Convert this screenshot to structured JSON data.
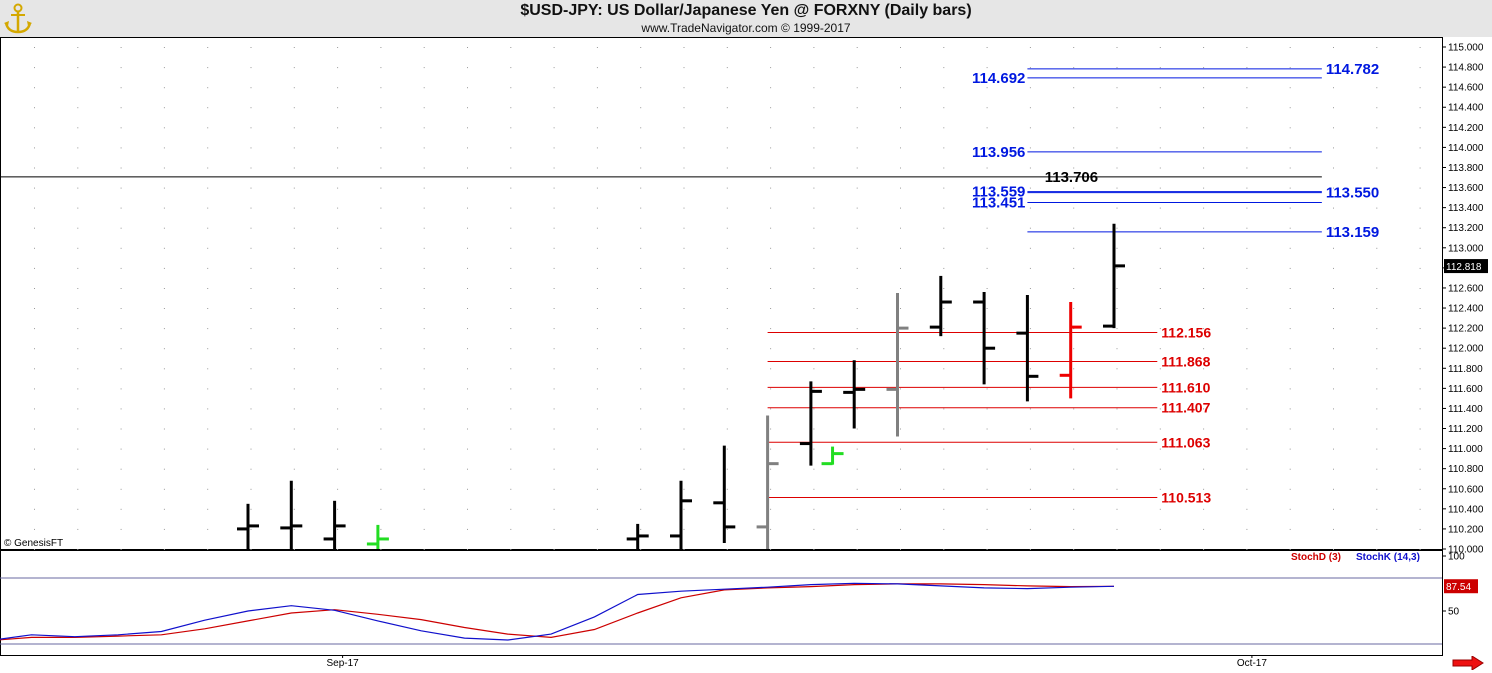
{
  "window": {
    "title": "$USD-JPY:  US Dollar/Japanese Yen @ FORXNY  (Daily bars)",
    "subtitle": "www.TradeNavigator.com © 1999-2017",
    "logo_icon": "anchor-logo-icon",
    "scroll_icon": "right-arrow-icon"
  },
  "colors": {
    "header_bg": "#e6e6e6",
    "bar_black": "#000000",
    "bar_gray": "#808080",
    "bar_green": "#22dd22",
    "bar_red": "#ee0000",
    "fib_blue": "#0018e0",
    "fib_red": "#dd0000",
    "stoch_d": "#cc0000",
    "stoch_k": "#1010cc",
    "last_price_bg": "#000000"
  },
  "chart_data": [
    {
      "type": "ohlc",
      "ylim": [
        110.0,
        115.0
      ],
      "y_ticks": [
        "115.000",
        "114.800",
        "114.600",
        "114.400",
        "114.200",
        "114.000",
        "113.800",
        "113.600",
        "113.400",
        "113.200",
        "113.000",
        "112.800",
        "112.600",
        "112.400",
        "112.200",
        "112.000",
        "111.800",
        "111.600",
        "111.400",
        "111.200",
        "111.000",
        "110.800",
        "110.600",
        "110.400",
        "110.200",
        "110.000"
      ],
      "x_labels": [
        {
          "label": "Sep-17",
          "bar": 2
        },
        {
          "label": "Oct-17",
          "bar": 23
        }
      ],
      "watermark": "© GenesisFT",
      "last_price": "112.818",
      "bars": [
        {
          "bar": 0,
          "open": 110.2,
          "high": 110.45,
          "low": 110.0,
          "close": 110.23,
          "color": "black"
        },
        {
          "bar": 1,
          "open": 110.21,
          "high": 110.68,
          "low": 110.0,
          "close": 110.23,
          "color": "black"
        },
        {
          "bar": 2,
          "open": 110.1,
          "high": 110.48,
          "low": 110.0,
          "close": 110.23,
          "color": "black"
        },
        {
          "bar": 3,
          "open": 110.05,
          "high": 110.24,
          "low": 110.0,
          "close": 110.1,
          "color": "green"
        },
        {
          "bar": 9,
          "open": 110.1,
          "high": 110.25,
          "low": 110.0,
          "close": 110.13,
          "color": "black"
        },
        {
          "bar": 10,
          "open": 110.13,
          "high": 110.68,
          "low": 110.0,
          "close": 110.48,
          "color": "black"
        },
        {
          "bar": 11,
          "open": 110.46,
          "high": 111.03,
          "low": 110.06,
          "close": 110.22,
          "color": "black"
        },
        {
          "bar": 12,
          "open": 110.22,
          "high": 111.33,
          "low": 110.0,
          "close": 110.85,
          "color": "gray"
        },
        {
          "bar": 13,
          "open": 111.05,
          "high": 111.67,
          "low": 110.83,
          "close": 111.57,
          "color": "black"
        },
        {
          "bar": 13.5,
          "open": 110.85,
          "high": 111.02,
          "low": 110.84,
          "close": 110.95,
          "color": "green"
        },
        {
          "bar": 14,
          "open": 111.56,
          "high": 111.88,
          "low": 111.2,
          "close": 111.59,
          "color": "black"
        },
        {
          "bar": 15,
          "open": 111.59,
          "high": 112.55,
          "low": 111.12,
          "close": 112.2,
          "color": "gray"
        },
        {
          "bar": 16,
          "open": 112.21,
          "high": 112.72,
          "low": 112.12,
          "close": 112.46,
          "color": "black"
        },
        {
          "bar": 17,
          "open": 112.46,
          "high": 112.56,
          "low": 111.64,
          "close": 112.0,
          "color": "black"
        },
        {
          "bar": 18,
          "open": 112.15,
          "high": 112.53,
          "low": 111.47,
          "close": 111.72,
          "color": "black"
        },
        {
          "bar": 19,
          "open": 111.73,
          "high": 112.46,
          "low": 111.5,
          "close": 112.21,
          "color": "red"
        },
        {
          "bar": 20,
          "open": 112.22,
          "high": 113.24,
          "low": 112.2,
          "close": 112.82,
          "color": "black"
        }
      ],
      "levels": [
        {
          "value": 114.782,
          "label": "114.782",
          "color": "blue",
          "side": "right",
          "bar_from": 18,
          "bar_to": 24.8
        },
        {
          "value": 114.692,
          "label": "114.692",
          "color": "blue",
          "side": "left",
          "bar_from": 18,
          "bar_to": 24.8
        },
        {
          "value": 113.956,
          "label": "113.956",
          "color": "blue",
          "side": "left",
          "bar_from": 18,
          "bar_to": 24.8
        },
        {
          "value": 113.706,
          "label": "113.706",
          "color": "black",
          "side": "mid",
          "bar_from": -6,
          "bar_to": 24.8
        },
        {
          "value": 113.559,
          "label": "113.559",
          "color": "blue",
          "side": "left",
          "bar_from": 18,
          "bar_to": 24.8
        },
        {
          "value": 113.55,
          "label": "113.550",
          "color": "blue",
          "side": "right",
          "bar_from": 18,
          "bar_to": 24.8
        },
        {
          "value": 113.451,
          "label": "113.451",
          "color": "blue",
          "side": "left",
          "bar_from": 18,
          "bar_to": 24.8
        },
        {
          "value": 113.159,
          "label": "113.159",
          "color": "blue",
          "side": "right",
          "bar_from": 18,
          "bar_to": 24.8
        },
        {
          "value": 112.156,
          "label": "112.156",
          "color": "red",
          "side": "right",
          "bar_from": 12,
          "bar_to": 21.0
        },
        {
          "value": 111.868,
          "label": "111.868",
          "color": "red",
          "side": "right",
          "bar_from": 12,
          "bar_to": 21.0
        },
        {
          "value": 111.61,
          "label": "111.610",
          "color": "red",
          "side": "right",
          "bar_from": 12,
          "bar_to": 21.0
        },
        {
          "value": 111.407,
          "label": "111.407",
          "color": "red",
          "side": "right",
          "bar_from": 12,
          "bar_to": 21.0
        },
        {
          "value": 111.063,
          "label": "111.063",
          "color": "red",
          "side": "right",
          "bar_from": 12,
          "bar_to": 21.0
        },
        {
          "value": 110.513,
          "label": "110.513",
          "color": "red",
          "side": "right",
          "bar_from": 12,
          "bar_to": 21.0
        }
      ]
    },
    {
      "type": "line",
      "ylim": [
        0,
        100
      ],
      "y_ticks": [
        "100",
        "50"
      ],
      "last_value": "87.54",
      "x": [
        -6,
        -5,
        -4,
        -3,
        -2,
        -1,
        0,
        1,
        2,
        3,
        4,
        5,
        6,
        7,
        8,
        9,
        10,
        11,
        12,
        13,
        14,
        15,
        16,
        17,
        18,
        19,
        20
      ],
      "series": [
        {
          "name": "StochD (3)",
          "color": "red",
          "values": [
            5,
            10,
            10,
            12,
            14,
            23,
            35,
            47,
            52,
            45,
            37,
            25,
            15,
            10,
            22,
            47,
            70,
            82,
            85,
            87,
            90,
            91,
            91,
            90,
            88,
            87,
            87.5
          ]
        },
        {
          "name": "StochK (14,3)",
          "color": "blue",
          "values": [
            5,
            14,
            11,
            14,
            19,
            36,
            50,
            58,
            51,
            35,
            20,
            9,
            6,
            15,
            41,
            75,
            80,
            83,
            86,
            90,
            92,
            91,
            88,
            85,
            84,
            86,
            87.5
          ]
        }
      ],
      "reference_lines": [
        100,
        0
      ]
    }
  ]
}
